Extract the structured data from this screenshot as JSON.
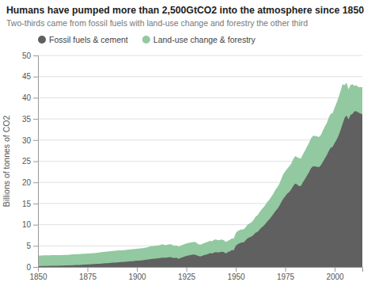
{
  "chart_data": {
    "type": "area",
    "title": "Humans have pumped more than 2,500GtCO2 into the atmosphere since 1850",
    "subtitle": "Two-thirds came from fossil fuels with land-use change and forestry the other third",
    "ylabel": "Billions of tonnes of CO2",
    "x": [
      1850,
      1851,
      1852,
      1853,
      1854,
      1855,
      1856,
      1857,
      1858,
      1859,
      1860,
      1861,
      1862,
      1863,
      1864,
      1865,
      1866,
      1867,
      1868,
      1869,
      1870,
      1871,
      1872,
      1873,
      1874,
      1875,
      1876,
      1877,
      1878,
      1879,
      1880,
      1881,
      1882,
      1883,
      1884,
      1885,
      1886,
      1887,
      1888,
      1889,
      1890,
      1891,
      1892,
      1893,
      1894,
      1895,
      1896,
      1897,
      1898,
      1899,
      1900,
      1901,
      1902,
      1903,
      1904,
      1905,
      1906,
      1907,
      1908,
      1909,
      1910,
      1911,
      1912,
      1913,
      1914,
      1915,
      1916,
      1917,
      1918,
      1919,
      1920,
      1921,
      1922,
      1923,
      1924,
      1925,
      1926,
      1927,
      1928,
      1929,
      1930,
      1931,
      1932,
      1933,
      1934,
      1935,
      1936,
      1937,
      1938,
      1939,
      1940,
      1941,
      1942,
      1943,
      1944,
      1945,
      1946,
      1947,
      1948,
      1949,
      1950,
      1951,
      1952,
      1953,
      1954,
      1955,
      1956,
      1957,
      1958,
      1959,
      1960,
      1961,
      1962,
      1963,
      1964,
      1965,
      1966,
      1967,
      1968,
      1969,
      1970,
      1971,
      1972,
      1973,
      1974,
      1975,
      1976,
      1977,
      1978,
      1979,
      1980,
      1981,
      1982,
      1983,
      1984,
      1985,
      1986,
      1987,
      1988,
      1989,
      1990,
      1991,
      1992,
      1993,
      1994,
      1995,
      1996,
      1997,
      1998,
      1999,
      2000,
      2001,
      2002,
      2003,
      2004,
      2005,
      2006,
      2007,
      2008,
      2009,
      2010,
      2011,
      2012,
      2013,
      2014
    ],
    "series": [
      {
        "name": "Fossil fuels & cement",
        "color": "#606060",
        "values": [
          0.2,
          0.21,
          0.22,
          0.23,
          0.24,
          0.25,
          0.26,
          0.27,
          0.28,
          0.29,
          0.3,
          0.31,
          0.32,
          0.34,
          0.36,
          0.37,
          0.39,
          0.41,
          0.43,
          0.45,
          0.47,
          0.49,
          0.52,
          0.55,
          0.57,
          0.6,
          0.62,
          0.65,
          0.68,
          0.71,
          0.74,
          0.77,
          0.81,
          0.84,
          0.87,
          0.9,
          0.93,
          0.97,
          1.01,
          1.05,
          1.09,
          1.13,
          1.16,
          1.19,
          1.22,
          1.26,
          1.3,
          1.34,
          1.38,
          1.43,
          1.48,
          1.52,
          1.56,
          1.61,
          1.67,
          1.73,
          1.8,
          1.88,
          1.92,
          1.97,
          2.02,
          2.07,
          2.15,
          2.22,
          2.18,
          2.2,
          2.3,
          2.35,
          2.2,
          2.1,
          2.2,
          1.9,
          2.1,
          2.3,
          2.45,
          2.6,
          2.7,
          2.8,
          2.9,
          2.95,
          2.8,
          2.6,
          2.5,
          2.6,
          2.8,
          2.9,
          3.1,
          3.3,
          3.2,
          3.4,
          3.5,
          3.4,
          3.5,
          3.6,
          3.5,
          3.2,
          3.5,
          3.7,
          4.0,
          4.0,
          5.0,
          5.4,
          5.6,
          5.8,
          5.8,
          6.3,
          6.8,
          7.0,
          7.2,
          7.6,
          8.1,
          8.3,
          8.8,
          9.3,
          9.7,
          10.2,
          10.8,
          11.3,
          11.9,
          12.5,
          13.2,
          13.7,
          14.4,
          15.3,
          16.1,
          16.7,
          17.3,
          17.7,
          18.3,
          19.1,
          19.7,
          19.5,
          19.1,
          19.2,
          20.1,
          20.8,
          21.6,
          22.4,
          23.3,
          23.8,
          23.8,
          23.7,
          23.6,
          24.0,
          24.8,
          25.6,
          26.4,
          27.4,
          28.2,
          28.4,
          29.3,
          30.1,
          31.1,
          32.4,
          33.8,
          35.2,
          35.8,
          34.9,
          35.9,
          36.2,
          36.8,
          36.8,
          36.5,
          36.3,
          36.1
        ]
      },
      {
        "name": "Land-use change & forestry",
        "color": "#92c9a0",
        "values": [
          2.7,
          2.7,
          2.7,
          2.75,
          2.75,
          2.75,
          2.75,
          2.8,
          2.8,
          2.8,
          2.8,
          2.8,
          2.8,
          2.85,
          2.85,
          2.85,
          2.9,
          2.95,
          3.0,
          3.0,
          3.05,
          3.05,
          3.1,
          3.15,
          3.15,
          3.2,
          3.2,
          3.25,
          3.3,
          3.3,
          3.35,
          3.4,
          3.5,
          3.55,
          3.6,
          3.65,
          3.7,
          3.75,
          3.8,
          3.85,
          3.9,
          3.95,
          3.95,
          4.0,
          4.0,
          4.05,
          4.1,
          4.15,
          4.2,
          4.25,
          4.3,
          4.35,
          4.4,
          4.45,
          4.55,
          4.65,
          4.75,
          4.9,
          4.9,
          5.0,
          5.05,
          5.1,
          5.25,
          5.4,
          5.2,
          5.2,
          5.35,
          5.4,
          5.2,
          5.0,
          5.1,
          4.8,
          5.0,
          5.2,
          5.4,
          5.55,
          5.65,
          5.75,
          5.85,
          5.95,
          5.8,
          5.4,
          5.3,
          5.45,
          5.65,
          5.8,
          6.0,
          6.2,
          6.1,
          6.4,
          6.5,
          6.3,
          6.4,
          6.5,
          6.3,
          5.9,
          6.2,
          6.4,
          6.75,
          6.75,
          8.0,
          8.5,
          8.7,
          8.9,
          8.9,
          9.4,
          10.0,
          10.3,
          10.6,
          11.1,
          11.9,
          12.2,
          12.9,
          13.6,
          14.1,
          14.7,
          15.4,
          15.9,
          16.6,
          17.3,
          18.2,
          18.8,
          19.6,
          20.8,
          21.9,
          22.6,
          23.2,
          23.8,
          24.4,
          25.4,
          26.2,
          26.0,
          25.7,
          25.7,
          26.7,
          27.5,
          28.4,
          29.3,
          30.4,
          31.0,
          31.0,
          30.9,
          30.7,
          31.2,
          32.2,
          33.2,
          34.0,
          35.3,
          36.2,
          36.4,
          37.7,
          38.8,
          40.1,
          41.6,
          43.2,
          43.0,
          43.6,
          42.0,
          43.0,
          43.2,
          42.8,
          43.0,
          42.5,
          42.5,
          42.5
        ]
      }
    ],
    "xlim": [
      1850,
      2014
    ],
    "xticks": [
      1850,
      1875,
      1900,
      1925,
      1950,
      1975,
      2000
    ],
    "ylim": [
      0,
      50
    ],
    "yticks": [
      0,
      5,
      10,
      15,
      20,
      25,
      30,
      35,
      40,
      45,
      50
    ],
    "grid": true,
    "legend": "top"
  }
}
